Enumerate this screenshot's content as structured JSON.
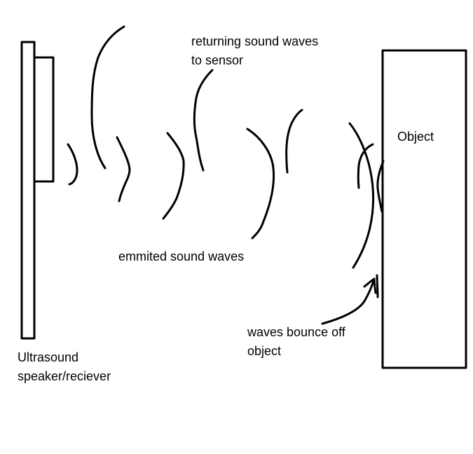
{
  "labels": {
    "returning": [
      "returning sound waves",
      "to sensor"
    ],
    "object": "Object",
    "emitted": "emmited sound waves",
    "bounce": [
      "waves bounce off",
      "object"
    ],
    "device": [
      "Ultrasound",
      "speaker/reciever"
    ]
  },
  "colors": {
    "background": "#ffffff",
    "ink": "#000000"
  }
}
